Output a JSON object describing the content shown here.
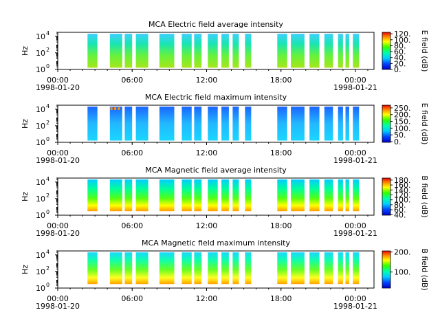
{
  "chart_data": [
    {
      "type": "heatmap",
      "title": "MCA  Electric field average intensity",
      "ylabel": "Hz",
      "y_ticks": [
        "10",
        "10",
        "10"
      ],
      "y_tick_exps": [
        "0",
        "2",
        "4"
      ],
      "ylim": [
        1,
        30000
      ],
      "y_scale": "log",
      "x_ticks": [
        "00:00",
        "06:00",
        "12:00",
        "18:00",
        "00:00"
      ],
      "x_date_labels": [
        "1998-01-20",
        "1998-01-21"
      ],
      "xlim": [
        "1998-01-20T00:00",
        "1998-01-21T01:30"
      ],
      "colorbar": {
        "label": "E field (dB)",
        "ticks": [
          "0.",
          "20.",
          "40.",
          "60.",
          "80.",
          "100.",
          "120."
        ],
        "range": [
          0,
          125
        ]
      },
      "data_segments_hours": [
        [
          2.4,
          3.2
        ],
        [
          4.2,
          5.2
        ],
        [
          5.4,
          6.0
        ],
        [
          6.3,
          7.3
        ],
        [
          8.2,
          9.4
        ],
        [
          10.0,
          10.8
        ],
        [
          11.0,
          11.6
        ],
        [
          12.1,
          12.9
        ],
        [
          13.2,
          13.8
        ],
        [
          14.1,
          14.6
        ],
        [
          15.1,
          15.6
        ],
        [
          17.7,
          18.5
        ],
        [
          18.8,
          19.9
        ],
        [
          20.3,
          21.1
        ],
        [
          21.5,
          22.2
        ],
        [
          22.6,
          23.0
        ],
        [
          23.2,
          23.5
        ],
        [
          23.8,
          24.3
        ]
      ]
    },
    {
      "type": "heatmap",
      "title": "MCA  Electric field maximum intensity",
      "ylabel": "Hz",
      "y_ticks": [
        "10",
        "10",
        "10"
      ],
      "y_tick_exps": [
        "0",
        "2",
        "4"
      ],
      "ylim": [
        1,
        30000
      ],
      "y_scale": "log",
      "x_ticks": [
        "00:00",
        "06:00",
        "12:00",
        "18:00",
        "00:00"
      ],
      "x_date_labels": [
        "1998-01-20",
        "1998-01-21"
      ],
      "xlim": [
        "1998-01-20T00:00",
        "1998-01-21T01:30"
      ],
      "colorbar": {
        "label": "E field (dB)",
        "ticks": [
          "0.",
          "50.",
          "100.",
          "150.",
          "200.",
          "250."
        ],
        "range": [
          -5,
          270
        ]
      },
      "data_segments_hours": [
        [
          2.4,
          3.2
        ],
        [
          4.2,
          5.2
        ],
        [
          5.4,
          6.0
        ],
        [
          6.3,
          7.3
        ],
        [
          8.2,
          9.4
        ],
        [
          10.0,
          10.8
        ],
        [
          11.0,
          11.6
        ],
        [
          12.1,
          12.9
        ],
        [
          13.2,
          13.8
        ],
        [
          14.1,
          14.6
        ],
        [
          15.1,
          15.6
        ],
        [
          17.7,
          18.5
        ],
        [
          18.8,
          19.9
        ],
        [
          20.3,
          21.1
        ],
        [
          21.5,
          22.2
        ],
        [
          22.6,
          23.0
        ],
        [
          23.2,
          23.5
        ],
        [
          23.8,
          24.3
        ]
      ]
    },
    {
      "type": "heatmap",
      "title": "MCA  Magnetic field average intensity",
      "ylabel": "Hz",
      "y_ticks": [
        "10",
        "10",
        "10"
      ],
      "y_tick_exps": [
        "0",
        "2",
        "4"
      ],
      "ylim": [
        1,
        30000
      ],
      "y_scale": "log",
      "x_ticks": [
        "00:00",
        "06:00",
        "12:00",
        "18:00",
        "00:00"
      ],
      "x_date_labels": [
        "1998-01-20",
        "1998-01-21"
      ],
      "xlim": [
        "1998-01-20T00:00",
        "1998-01-21T01:30"
      ],
      "colorbar": {
        "label": "B field (dB)",
        "ticks": [
          "40.",
          "60.",
          "80.",
          "100.",
          "120.",
          "140.",
          "160.",
          "180."
        ],
        "range": [
          38,
          188
        ]
      },
      "data_segments_hours": [
        [
          2.4,
          3.2
        ],
        [
          4.2,
          5.2
        ],
        [
          5.4,
          6.0
        ],
        [
          6.3,
          7.3
        ],
        [
          8.2,
          9.4
        ],
        [
          10.0,
          10.8
        ],
        [
          11.0,
          11.6
        ],
        [
          12.1,
          12.9
        ],
        [
          13.2,
          13.8
        ],
        [
          14.1,
          14.6
        ],
        [
          15.1,
          15.6
        ],
        [
          17.7,
          18.5
        ],
        [
          18.8,
          19.9
        ],
        [
          20.3,
          21.1
        ],
        [
          21.5,
          22.2
        ],
        [
          22.6,
          23.0
        ],
        [
          23.2,
          23.5
        ],
        [
          23.8,
          24.3
        ]
      ]
    },
    {
      "type": "heatmap",
      "title": "MCA  Magnetic field maximum intensity",
      "ylabel": "Hz",
      "y_ticks": [
        "10",
        "10",
        "10"
      ],
      "y_tick_exps": [
        "0",
        "2",
        "4"
      ],
      "ylim": [
        1,
        30000
      ],
      "y_scale": "log",
      "x_ticks": [
        "00:00",
        "06:00",
        "12:00",
        "18:00",
        "00:00"
      ],
      "x_date_labels": [
        "1998-01-20",
        "1998-01-21"
      ],
      "xlim": [
        "1998-01-20T00:00",
        "1998-01-21T01:30"
      ],
      "colorbar": {
        "label": "B field (dB)",
        "ticks": [
          "100.",
          "200."
        ],
        "range": [
          20,
          205
        ]
      },
      "data_segments_hours": [
        [
          2.4,
          3.2
        ],
        [
          4.2,
          5.2
        ],
        [
          5.4,
          6.0
        ],
        [
          6.3,
          7.3
        ],
        [
          8.2,
          9.4
        ],
        [
          10.0,
          10.8
        ],
        [
          11.0,
          11.6
        ],
        [
          12.1,
          12.9
        ],
        [
          13.2,
          13.8
        ],
        [
          14.1,
          14.6
        ],
        [
          15.1,
          15.6
        ],
        [
          17.7,
          18.5
        ],
        [
          18.8,
          19.9
        ],
        [
          20.3,
          21.1
        ],
        [
          21.5,
          22.2
        ],
        [
          22.6,
          23.0
        ],
        [
          23.2,
          23.5
        ],
        [
          23.8,
          24.3
        ]
      ]
    }
  ]
}
